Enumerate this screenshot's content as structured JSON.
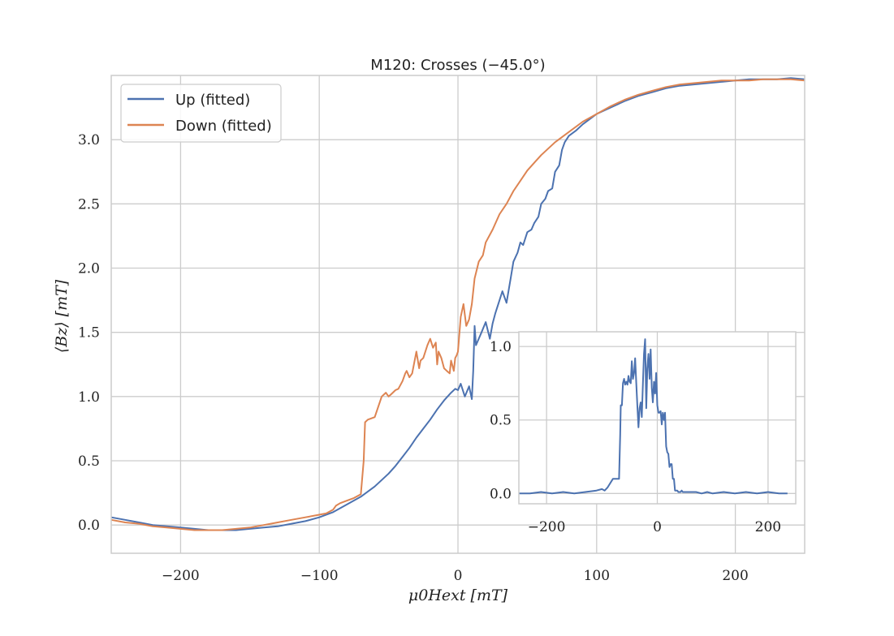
{
  "chart_data": [
    {
      "type": "line",
      "title": "M120: Crosses (−45.0°)",
      "xlabel": "μ0Hext [mT]",
      "ylabel": "⟨Bz⟩ [mT]",
      "xlim": [
        -250,
        250
      ],
      "ylim": [
        -0.22,
        3.5
      ],
      "grid": true,
      "legend_position": "top-left",
      "xticks": [
        -200,
        -100,
        0,
        100,
        200
      ],
      "xtick_labels": [
        "−200",
        "−100",
        "0",
        "100",
        "200"
      ],
      "yticks": [
        0.0,
        0.5,
        1.0,
        1.5,
        2.0,
        2.5,
        3.0
      ],
      "ytick_labels": [
        "0.0",
        "0.5",
        "1.0",
        "1.5",
        "2.0",
        "2.5",
        "3.0"
      ],
      "colors": {
        "up": "#4c72b0",
        "down": "#dd8452",
        "grid": "#cccccc",
        "frame": "#cccccc"
      },
      "series": [
        {
          "name": "Up (fitted)",
          "x": [
            -250,
            -240,
            -230,
            -220,
            -210,
            -200,
            -190,
            -180,
            -170,
            -160,
            -150,
            -140,
            -130,
            -120,
            -110,
            -100,
            -90,
            -80,
            -70,
            -60,
            -50,
            -45,
            -40,
            -35,
            -30,
            -25,
            -20,
            -15,
            -10,
            -5,
            -2,
            0,
            2,
            5,
            8,
            10,
            11,
            12,
            13,
            15,
            17,
            20,
            23,
            25,
            27,
            30,
            32,
            35,
            38,
            40,
            43,
            45,
            47,
            50,
            53,
            55,
            58,
            60,
            63,
            65,
            68,
            70,
            73,
            75,
            77,
            80,
            85,
            90,
            95,
            100,
            110,
            120,
            130,
            140,
            150,
            160,
            170,
            180,
            190,
            200,
            210,
            220,
            230,
            240,
            250
          ],
          "y": [
            0.06,
            0.04,
            0.02,
            0.0,
            -0.01,
            -0.02,
            -0.03,
            -0.04,
            -0.04,
            -0.04,
            -0.03,
            -0.02,
            -0.01,
            0.01,
            0.03,
            0.06,
            0.1,
            0.16,
            0.22,
            0.3,
            0.4,
            0.46,
            0.53,
            0.6,
            0.68,
            0.75,
            0.82,
            0.9,
            0.97,
            1.03,
            1.06,
            1.05,
            1.1,
            1.0,
            1.08,
            0.98,
            1.2,
            1.55,
            1.4,
            1.45,
            1.5,
            1.58,
            1.45,
            1.57,
            1.65,
            1.75,
            1.82,
            1.73,
            1.92,
            2.05,
            2.12,
            2.2,
            2.18,
            2.28,
            2.3,
            2.35,
            2.4,
            2.5,
            2.54,
            2.6,
            2.62,
            2.75,
            2.8,
            2.92,
            2.98,
            3.03,
            3.07,
            3.12,
            3.16,
            3.2,
            3.25,
            3.3,
            3.34,
            3.37,
            3.4,
            3.42,
            3.43,
            3.44,
            3.45,
            3.46,
            3.47,
            3.47,
            3.47,
            3.48,
            3.47
          ]
        },
        {
          "name": "Down (fitted)",
          "x": [
            -250,
            -240,
            -230,
            -220,
            -210,
            -200,
            -190,
            -180,
            -170,
            -160,
            -150,
            -140,
            -130,
            -120,
            -110,
            -100,
            -95,
            -90,
            -88,
            -85,
            -80,
            -75,
            -70,
            -68,
            -67,
            -65,
            -60,
            -55,
            -52,
            -50,
            -48,
            -45,
            -43,
            -40,
            -38,
            -37,
            -35,
            -33,
            -30,
            -28,
            -27,
            -25,
            -22,
            -20,
            -18,
            -16,
            -15,
            -14,
            -12,
            -10,
            -8,
            -6,
            -5,
            -4,
            -3,
            -2,
            -1,
            0,
            2,
            4,
            6,
            8,
            10,
            12,
            15,
            18,
            20,
            25,
            30,
            35,
            40,
            45,
            50,
            55,
            60,
            70,
            80,
            90,
            100,
            110,
            120,
            130,
            140,
            150,
            160,
            170,
            180,
            190,
            200,
            210,
            220,
            230,
            240,
            250
          ],
          "y": [
            0.04,
            0.02,
            0.01,
            -0.01,
            -0.02,
            -0.03,
            -0.04,
            -0.04,
            -0.04,
            -0.03,
            -0.02,
            0.0,
            0.02,
            0.04,
            0.06,
            0.08,
            0.09,
            0.12,
            0.15,
            0.17,
            0.19,
            0.21,
            0.24,
            0.5,
            0.8,
            0.82,
            0.84,
            1.0,
            1.03,
            1.0,
            1.02,
            1.05,
            1.06,
            1.12,
            1.18,
            1.2,
            1.15,
            1.18,
            1.35,
            1.22,
            1.28,
            1.3,
            1.4,
            1.45,
            1.38,
            1.42,
            1.25,
            1.35,
            1.3,
            1.22,
            1.2,
            1.18,
            1.28,
            1.24,
            1.2,
            1.3,
            1.32,
            1.35,
            1.62,
            1.72,
            1.55,
            1.6,
            1.72,
            1.92,
            2.05,
            2.1,
            2.2,
            2.3,
            2.42,
            2.5,
            2.6,
            2.68,
            2.76,
            2.82,
            2.88,
            2.98,
            3.06,
            3.14,
            3.2,
            3.26,
            3.31,
            3.35,
            3.38,
            3.41,
            3.43,
            3.44,
            3.45,
            3.46,
            3.46,
            3.46,
            3.47,
            3.47,
            3.47,
            3.46
          ]
        }
      ]
    },
    {
      "type": "line",
      "title": "",
      "xlabel": "",
      "ylabel": "",
      "xlim": [
        -250,
        250
      ],
      "ylim": [
        -0.07,
        1.1
      ],
      "grid": true,
      "xticks": [
        -200,
        0,
        200
      ],
      "xtick_labels": [
        "−200",
        "0",
        "200"
      ],
      "yticks": [
        0.0,
        0.5,
        1.0
      ],
      "ytick_labels": [
        "0.0",
        "0.5",
        "1.0"
      ],
      "series": [
        {
          "name": "",
          "x": [
            -250,
            -230,
            -210,
            -190,
            -170,
            -150,
            -130,
            -110,
            -100,
            -95,
            -90,
            -80,
            -75,
            -70,
            -69,
            -67,
            -66,
            -64,
            -62,
            -60,
            -58,
            -56,
            -54,
            -52,
            -50,
            -48,
            -46,
            -44,
            -42,
            -40,
            -38,
            -36,
            -34,
            -32,
            -30,
            -28,
            -26,
            -24,
            -22,
            -20,
            -18,
            -16,
            -14,
            -12,
            -10,
            -8,
            -6,
            -4,
            -2,
            0,
            2,
            4,
            6,
            8,
            10,
            12,
            14,
            16,
            18,
            20,
            22,
            24,
            26,
            28,
            30,
            32,
            34,
            36,
            38,
            40,
            42,
            44,
            46,
            48,
            50,
            52,
            54,
            56,
            58,
            60,
            62,
            64,
            66,
            70,
            80,
            90,
            100,
            120,
            140,
            160,
            180,
            200,
            220,
            235
          ],
          "y": [
            0.0,
            0.0,
            0.01,
            0.0,
            0.01,
            0.0,
            0.01,
            0.02,
            0.03,
            0.02,
            0.04,
            0.1,
            0.1,
            0.1,
            0.1,
            0.4,
            0.6,
            0.6,
            0.75,
            0.78,
            0.74,
            0.76,
            0.74,
            0.8,
            0.76,
            0.75,
            0.9,
            0.78,
            0.82,
            0.92,
            0.75,
            0.6,
            0.45,
            0.58,
            0.62,
            0.52,
            0.75,
            0.95,
            1.05,
            0.58,
            0.85,
            0.95,
            0.78,
            0.98,
            0.72,
            0.62,
            0.76,
            0.68,
            0.82,
            0.6,
            0.55,
            0.55,
            0.56,
            0.47,
            0.55,
            0.5,
            0.55,
            0.32,
            0.28,
            0.27,
            0.18,
            0.2,
            0.2,
            0.1,
            0.1,
            0.02,
            0.02,
            0.02,
            0.01,
            0.01,
            0.01,
            0.02,
            0.01,
            0.01,
            0.01,
            0.01,
            0.01,
            0.01,
            0.01,
            0.01,
            0.01,
            0.01,
            0.01,
            0.01,
            0.0,
            0.01,
            0.0,
            0.01,
            0.0,
            0.01,
            0.0,
            0.01,
            0.0,
            0.0
          ]
        }
      ]
    }
  ]
}
